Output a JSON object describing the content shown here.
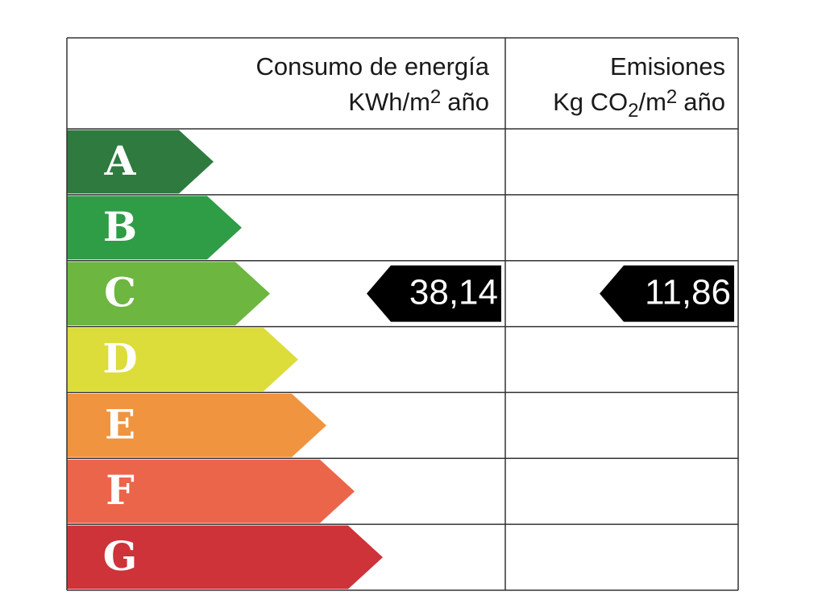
{
  "header": {
    "energy": {
      "line1": "Consumo de energía",
      "line2": [
        "KWh/m",
        "2",
        "año"
      ]
    },
    "emissions": {
      "line1": "Emisiones",
      "line2": [
        "Kg CO",
        "2",
        "/m",
        "2",
        "año"
      ]
    }
  },
  "rows": [
    {
      "letter": "A",
      "color": "#2f7a3f"
    },
    {
      "letter": "B",
      "color": "#2f9c46"
    },
    {
      "letter": "C",
      "color": "#6db640",
      "energy": "38,14",
      "emissions": "11,86"
    },
    {
      "letter": "D",
      "color": "#dcdc3b"
    },
    {
      "letter": "E",
      "color": "#f09440"
    },
    {
      "letter": "F",
      "color": "#eb654b"
    },
    {
      "letter": "G",
      "color": "#cd3339"
    }
  ]
}
